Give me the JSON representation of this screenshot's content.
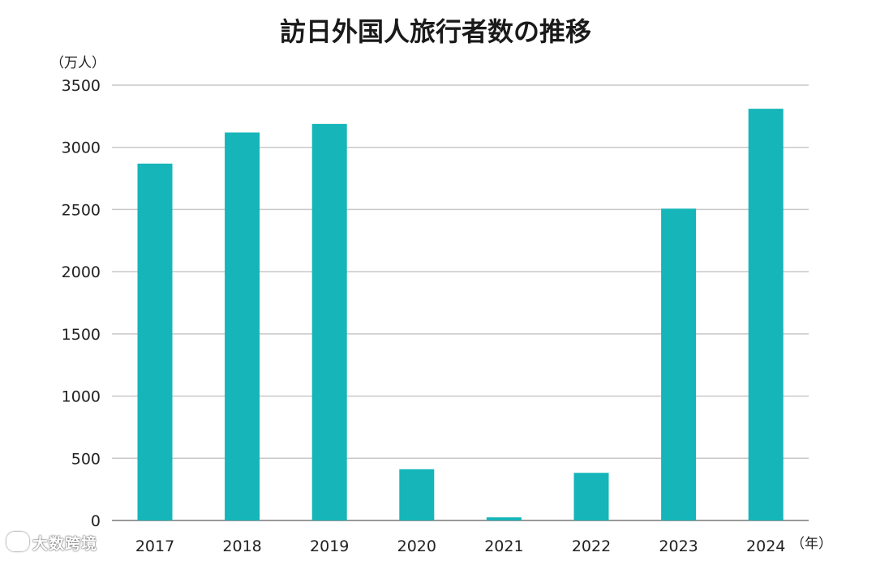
{
  "chart_data": {
    "type": "bar",
    "title": "訪日外国人旅行者数の推移",
    "ylabel": "（万人）",
    "xlabel": "（年）",
    "categories": [
      "2017",
      "2018",
      "2019",
      "2020",
      "2021",
      "2022",
      "2023",
      "2024"
    ],
    "values": [
      2869,
      3119,
      3188,
      412,
      25,
      383,
      2507,
      3310
    ],
    "ylim": [
      0,
      3500
    ],
    "yticks": [
      "0",
      "500",
      "1000",
      "1500",
      "2000",
      "2500",
      "3000",
      "3500"
    ],
    "grid": true,
    "legend": "none",
    "bar_color": "#15b5b9"
  },
  "watermark": {
    "icon": "logo-icon",
    "text": "大数跨境"
  }
}
